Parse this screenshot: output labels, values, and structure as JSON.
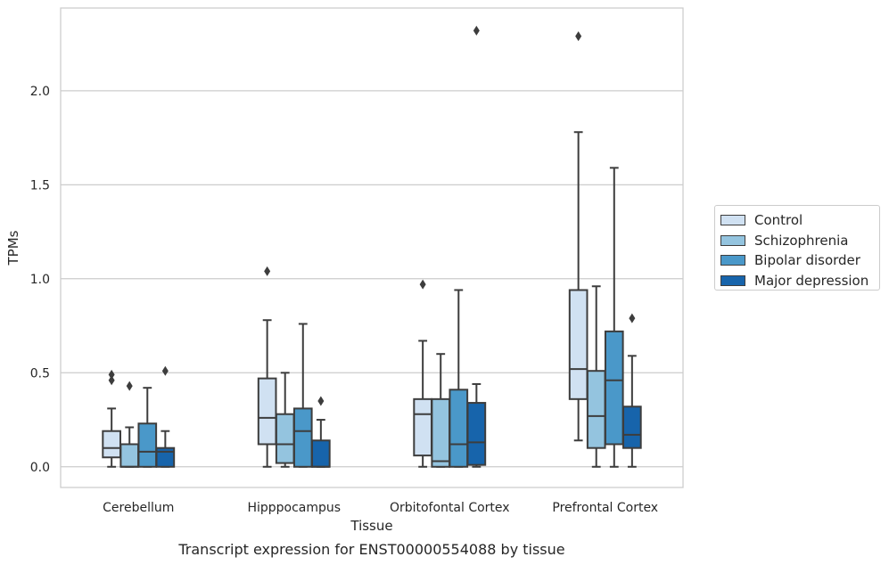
{
  "chart_data": {
    "type": "box",
    "title": "Transcript expression for ENST00000554088 by tissue",
    "xlabel": "Tissue",
    "ylabel": "TPMs",
    "ylim": [
      -0.11,
      2.44
    ],
    "yticks": [
      "0.0",
      "0.5",
      "1.0",
      "1.5",
      "2.0"
    ],
    "ytick_values": [
      0.0,
      0.5,
      1.0,
      1.5,
      2.0
    ],
    "grid": "horizontal",
    "legend_position": "right",
    "categories": [
      "Cerebellum",
      "Hipppocampus",
      "Orbitofontal Cortex",
      "Prefrontal Cortex"
    ],
    "series": [
      {
        "name": "Control",
        "color": "#d0e1f2",
        "boxes": [
          {
            "whisker_low": 0.0,
            "q1": 0.05,
            "median": 0.1,
            "q3": 0.19,
            "whisker_high": 0.31,
            "outliers": [
              0.46,
              0.49
            ]
          },
          {
            "whisker_low": 0.0,
            "q1": 0.12,
            "median": 0.26,
            "q3": 0.47,
            "whisker_high": 0.78,
            "outliers": [
              1.04
            ]
          },
          {
            "whisker_low": 0.0,
            "q1": 0.06,
            "median": 0.28,
            "q3": 0.36,
            "whisker_high": 0.67,
            "outliers": [
              0.97
            ]
          },
          {
            "whisker_low": 0.14,
            "q1": 0.36,
            "median": 0.52,
            "q3": 0.94,
            "whisker_high": 1.78,
            "outliers": [
              2.29
            ]
          }
        ]
      },
      {
        "name": "Schizophrenia",
        "color": "#94c4df",
        "boxes": [
          {
            "whisker_low": 0.0,
            "q1": 0.0,
            "median": 0.0,
            "q3": 0.12,
            "whisker_high": 0.21,
            "outliers": [
              0.43
            ]
          },
          {
            "whisker_low": 0.0,
            "q1": 0.02,
            "median": 0.12,
            "q3": 0.28,
            "whisker_high": 0.5,
            "outliers": []
          },
          {
            "whisker_low": 0.0,
            "q1": 0.0,
            "median": 0.03,
            "q3": 0.36,
            "whisker_high": 0.6,
            "outliers": []
          },
          {
            "whisker_low": 0.0,
            "q1": 0.1,
            "median": 0.27,
            "q3": 0.51,
            "whisker_high": 0.96,
            "outliers": []
          }
        ]
      },
      {
        "name": "Bipolar disorder",
        "color": "#4a98c9",
        "boxes": [
          {
            "whisker_low": 0.0,
            "q1": 0.0,
            "median": 0.08,
            "q3": 0.23,
            "whisker_high": 0.42,
            "outliers": []
          },
          {
            "whisker_low": 0.0,
            "q1": 0.0,
            "median": 0.19,
            "q3": 0.31,
            "whisker_high": 0.76,
            "outliers": []
          },
          {
            "whisker_low": 0.0,
            "q1": 0.0,
            "median": 0.12,
            "q3": 0.41,
            "whisker_high": 0.94,
            "outliers": []
          },
          {
            "whisker_low": 0.0,
            "q1": 0.12,
            "median": 0.46,
            "q3": 0.72,
            "whisker_high": 1.59,
            "outliers": []
          }
        ]
      },
      {
        "name": "Major depression",
        "color": "#1764ab",
        "boxes": [
          {
            "whisker_low": 0.0,
            "q1": 0.0,
            "median": 0.08,
            "q3": 0.1,
            "whisker_high": 0.19,
            "outliers": [
              0.51
            ]
          },
          {
            "whisker_low": 0.0,
            "q1": 0.0,
            "median": 0.0,
            "q3": 0.14,
            "whisker_high": 0.25,
            "outliers": [
              0.35
            ]
          },
          {
            "whisker_low": 0.0,
            "q1": 0.01,
            "median": 0.13,
            "q3": 0.34,
            "whisker_high": 0.44,
            "outliers": [
              2.32
            ]
          },
          {
            "whisker_low": 0.0,
            "q1": 0.1,
            "median": 0.17,
            "q3": 0.32,
            "whisker_high": 0.59,
            "outliers": [
              0.79
            ]
          }
        ]
      }
    ]
  }
}
